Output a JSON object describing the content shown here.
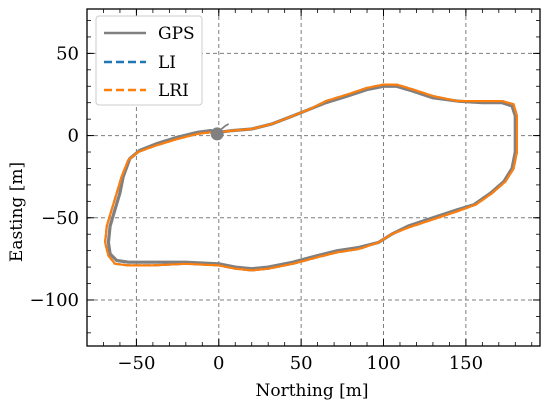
{
  "chart_data": {
    "type": "line",
    "xlabel": "Northing [m]",
    "ylabel": "Easting [m]",
    "xlim": [
      -80,
      195
    ],
    "ylim": [
      -128,
      77
    ],
    "xticks": [
      -50,
      0,
      50,
      100,
      150
    ],
    "yticks": [
      50,
      0,
      -50,
      -100
    ],
    "x_minor_step": 10,
    "y_minor_step": 10,
    "grid": true,
    "legend_position": "top-left",
    "series": [
      {
        "name": "GPS",
        "color": "#808080",
        "style": "solid",
        "points": [
          [
            0,
            2
          ],
          [
            8,
            3
          ],
          [
            20,
            4
          ],
          [
            32,
            7
          ],
          [
            45,
            12
          ],
          [
            55,
            16
          ],
          [
            65,
            20
          ],
          [
            78,
            24
          ],
          [
            90,
            28
          ],
          [
            100,
            30
          ],
          [
            108,
            30
          ],
          [
            118,
            27
          ],
          [
            130,
            23
          ],
          [
            145,
            21
          ],
          [
            160,
            20
          ],
          [
            172,
            20
          ],
          [
            178,
            18
          ],
          [
            180,
            12
          ],
          [
            180,
            0
          ],
          [
            180,
            -10
          ],
          [
            178,
            -20
          ],
          [
            173,
            -28
          ],
          [
            165,
            -35
          ],
          [
            155,
            -42
          ],
          [
            145,
            -45
          ],
          [
            130,
            -50
          ],
          [
            115,
            -55
          ],
          [
            105,
            -60
          ],
          [
            97,
            -65
          ],
          [
            85,
            -68
          ],
          [
            72,
            -70
          ],
          [
            60,
            -73
          ],
          [
            45,
            -77
          ],
          [
            30,
            -80
          ],
          [
            20,
            -81
          ],
          [
            10,
            -80
          ],
          [
            0,
            -78
          ],
          [
            -20,
            -77
          ],
          [
            -40,
            -77
          ],
          [
            -55,
            -77
          ],
          [
            -62,
            -76
          ],
          [
            -66,
            -72
          ],
          [
            -67,
            -65
          ],
          [
            -66,
            -55
          ],
          [
            -63,
            -45
          ],
          [
            -60,
            -35
          ],
          [
            -58,
            -25
          ],
          [
            -54,
            -14
          ],
          [
            -48,
            -9
          ],
          [
            -38,
            -5
          ],
          [
            -25,
            -1
          ],
          [
            -13,
            2
          ],
          [
            -5,
            3
          ],
          [
            0,
            2
          ]
        ]
      },
      {
        "name": "LI",
        "color": "#1f77b4",
        "style": "dashed",
        "points": [
          [
            0,
            2
          ],
          [
            8,
            3
          ],
          [
            20,
            4
          ],
          [
            32,
            7
          ],
          [
            45,
            12
          ],
          [
            55,
            16
          ],
          [
            65,
            21
          ],
          [
            78,
            25
          ],
          [
            90,
            29
          ],
          [
            100,
            31
          ],
          [
            108,
            31
          ],
          [
            118,
            28
          ],
          [
            130,
            24
          ],
          [
            145,
            21
          ],
          [
            160,
            21
          ],
          [
            172,
            21
          ],
          [
            179,
            19
          ],
          [
            181,
            12
          ],
          [
            181,
            0
          ],
          [
            181,
            -10
          ],
          [
            179,
            -20
          ],
          [
            174,
            -28
          ],
          [
            166,
            -35
          ],
          [
            156,
            -42
          ],
          [
            145,
            -46
          ],
          [
            130,
            -51
          ],
          [
            115,
            -56
          ],
          [
            105,
            -60
          ],
          [
            97,
            -65
          ],
          [
            85,
            -69
          ],
          [
            72,
            -71
          ],
          [
            60,
            -74
          ],
          [
            45,
            -78
          ],
          [
            30,
            -81
          ],
          [
            20,
            -82
          ],
          [
            10,
            -81
          ],
          [
            0,
            -79
          ],
          [
            -20,
            -78
          ],
          [
            -40,
            -79
          ],
          [
            -55,
            -79
          ],
          [
            -63,
            -78
          ],
          [
            -67,
            -73
          ],
          [
            -69,
            -65
          ],
          [
            -68,
            -55
          ],
          [
            -65,
            -45
          ],
          [
            -62,
            -35
          ],
          [
            -59,
            -25
          ],
          [
            -55,
            -15
          ],
          [
            -49,
            -10
          ],
          [
            -38,
            -6
          ],
          [
            -25,
            -2
          ],
          [
            -13,
            1
          ],
          [
            -5,
            2
          ],
          [
            0,
            2
          ]
        ]
      },
      {
        "name": "LRI",
        "color": "#ff7f0e",
        "style": "dashed",
        "points": [
          [
            0,
            2
          ],
          [
            8,
            3
          ],
          [
            20,
            4
          ],
          [
            32,
            7
          ],
          [
            45,
            12
          ],
          [
            55,
            16
          ],
          [
            65,
            21
          ],
          [
            78,
            25
          ],
          [
            90,
            29
          ],
          [
            100,
            31
          ],
          [
            108,
            31
          ],
          [
            118,
            28
          ],
          [
            130,
            24
          ],
          [
            145,
            21
          ],
          [
            160,
            21
          ],
          [
            172,
            21
          ],
          [
            179,
            19
          ],
          [
            181,
            12
          ],
          [
            181,
            0
          ],
          [
            181,
            -10
          ],
          [
            179,
            -20
          ],
          [
            174,
            -28
          ],
          [
            166,
            -35
          ],
          [
            156,
            -42
          ],
          [
            145,
            -46
          ],
          [
            130,
            -51
          ],
          [
            115,
            -56
          ],
          [
            105,
            -60
          ],
          [
            97,
            -65
          ],
          [
            85,
            -69
          ],
          [
            72,
            -71
          ],
          [
            60,
            -74
          ],
          [
            45,
            -78
          ],
          [
            30,
            -81
          ],
          [
            20,
            -82
          ],
          [
            10,
            -81
          ],
          [
            0,
            -79
          ],
          [
            -20,
            -78
          ],
          [
            -40,
            -79
          ],
          [
            -55,
            -79
          ],
          [
            -63,
            -78
          ],
          [
            -67,
            -73
          ],
          [
            -69,
            -65
          ],
          [
            -68,
            -55
          ],
          [
            -65,
            -45
          ],
          [
            -62,
            -35
          ],
          [
            -59,
            -25
          ],
          [
            -55,
            -15
          ],
          [
            -49,
            -10
          ],
          [
            -38,
            -6
          ],
          [
            -25,
            -2
          ],
          [
            -13,
            1
          ],
          [
            -5,
            2
          ],
          [
            0,
            2
          ]
        ]
      }
    ]
  }
}
